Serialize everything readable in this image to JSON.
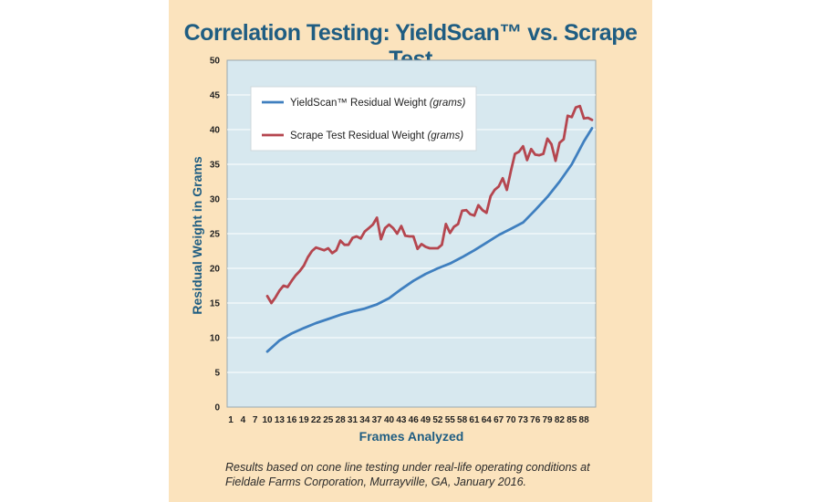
{
  "chart_data": {
    "type": "line",
    "title": "Correlation Testing: YieldScan™ vs. Scrape Test",
    "xlabel": "Frames Analyzed",
    "ylabel": "Residual Weight in Grams",
    "ylim": [
      0,
      50
    ],
    "yticks": [
      0,
      5,
      10,
      15,
      20,
      25,
      30,
      35,
      40,
      45,
      50
    ],
    "xlim": [
      1,
      90
    ],
    "xticks": [
      1,
      4,
      7,
      10,
      13,
      16,
      19,
      22,
      25,
      28,
      31,
      34,
      37,
      40,
      43,
      46,
      49,
      52,
      55,
      58,
      61,
      64,
      67,
      70,
      73,
      76,
      79,
      82,
      85,
      88
    ],
    "grid": "horizontal",
    "legend_position": "top-left",
    "series": [
      {
        "name": "YieldScan™ Residual Weight",
        "name_suffix": "(grams)",
        "color": "#3f7fbf",
        "x": [
          10,
          13,
          16,
          19,
          22,
          25,
          28,
          31,
          34,
          37,
          40,
          43,
          46,
          49,
          52,
          55,
          58,
          61,
          64,
          67,
          70,
          73,
          76,
          79,
          82,
          85,
          88,
          90
        ],
        "values": [
          8.0,
          9.6,
          10.6,
          11.4,
          12.1,
          12.7,
          13.3,
          13.8,
          14.2,
          14.8,
          15.7,
          17.0,
          18.2,
          19.2,
          20.0,
          20.7,
          21.6,
          22.6,
          23.7,
          24.8,
          25.7,
          26.6,
          28.4,
          30.3,
          32.5,
          35.0,
          38.3,
          40.2
        ]
      },
      {
        "name": "Scrape Test Residual Weight",
        "name_suffix": "(grams)",
        "color": "#b5464f",
        "x": [
          10,
          11,
          12,
          13,
          14,
          15,
          16,
          17,
          18,
          19,
          20,
          21,
          22,
          23,
          24,
          25,
          26,
          27,
          28,
          29,
          30,
          31,
          32,
          33,
          34,
          35,
          36,
          37,
          38,
          39,
          40,
          41,
          42,
          43,
          44,
          45,
          46,
          47,
          48,
          49,
          50,
          51,
          52,
          53,
          54,
          55,
          56,
          57,
          58,
          59,
          60,
          61,
          62,
          63,
          64,
          65,
          66,
          67,
          68,
          69,
          70,
          71,
          72,
          73,
          74,
          75,
          76,
          77,
          78,
          79,
          80,
          81,
          82,
          83,
          84,
          85,
          86,
          87,
          88,
          89,
          90
        ],
        "values": [
          16.0,
          15.0,
          15.8,
          16.8,
          17.5,
          17.3,
          18.2,
          19.0,
          19.6,
          20.4,
          21.6,
          22.5,
          23.0,
          22.8,
          22.6,
          22.9,
          22.2,
          22.6,
          24.0,
          23.4,
          23.4,
          24.4,
          24.6,
          24.3,
          25.3,
          25.8,
          26.3,
          27.3,
          24.2,
          25.8,
          26.3,
          25.8,
          25.0,
          26.1,
          24.7,
          24.6,
          24.6,
          22.8,
          23.5,
          23.1,
          22.9,
          22.9,
          22.9,
          23.4,
          26.4,
          25.1,
          26.0,
          26.4,
          28.3,
          28.4,
          27.8,
          27.6,
          29.1,
          28.4,
          28.0,
          30.4,
          31.3,
          31.8,
          33.0,
          31.3,
          34.0,
          36.5,
          36.8,
          37.6,
          35.6,
          37.2,
          36.4,
          36.3,
          36.5,
          38.7,
          37.9,
          35.5,
          38.1,
          38.6,
          42.0,
          41.8,
          43.2,
          43.4,
          41.6,
          41.7,
          41.4
        ]
      }
    ]
  },
  "footnote_line1": "Results based on cone line testing under real-life operating conditions at",
  "footnote_line2": "Fieldale Farms Corporation, Murrayville, GA, January 2016."
}
